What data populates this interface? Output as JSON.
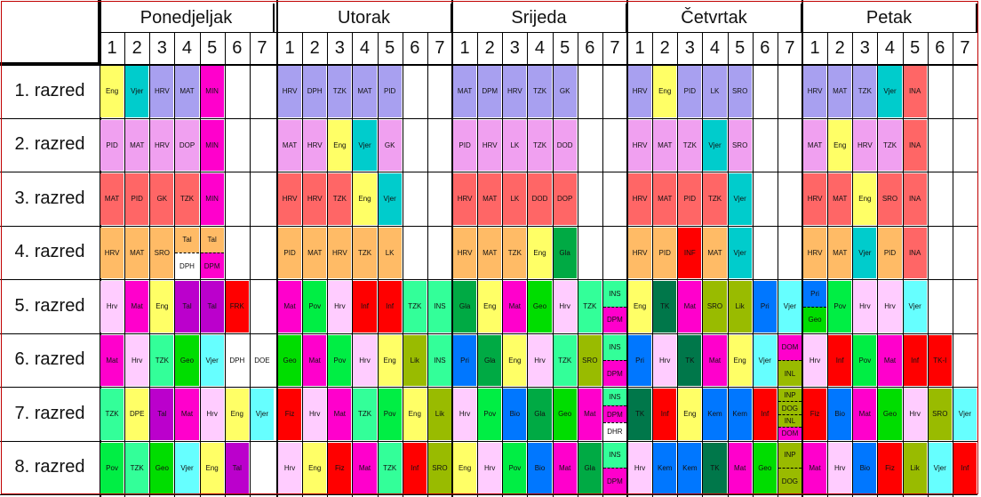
{
  "days": [
    "Ponedjeljak",
    "Utorak",
    "Srijeda",
    "Četvrtak",
    "Petak"
  ],
  "periods": [
    "1",
    "2",
    "3",
    "4",
    "5",
    "6",
    "7"
  ],
  "classes": [
    "1. razred",
    "2. razred",
    "3. razred",
    "4. razred",
    "5. razred",
    "6. razred",
    "7. razred",
    "8. razred"
  ],
  "colors": {
    "HRV": "#a8a0f0",
    "MAT": "#f0a0f0",
    "PID": "#f0a0f0",
    "TZK": "#a8a0f0",
    "Eng": "#ffff66",
    "Vjer": "#66ffff",
    "MIN": "#ff00cc",
    "DPH": "#ffcc66",
    "DPM": "#ff00cc",
    "GK": "#a8a0f0",
    "LK": "#a8a0f0",
    "SRO": "#a8a0f0",
    "DOP": "#f0a0f0",
    "DOD": "#f0a0f0",
    "INA": "#ff6666",
    "INF": "#ff0000",
    "Gla": "#00aa44",
    "red": "#ff6666",
    "orange": "#ffbb66"
  },
  "rows": [
    {
      "Ponedjeljak": [
        "Eng",
        "Vjer",
        "HRV",
        "MAT",
        "MIN",
        "",
        ""
      ],
      "Utorak": [
        "HRV",
        "DPH",
        "TZK",
        "MAT",
        "PID",
        "",
        ""
      ],
      "Srijeda": [
        "MAT",
        "DPM",
        "HRV",
        "TZK",
        "GK",
        "",
        ""
      ],
      "Četvrtak": [
        "HRV",
        "Eng",
        "PID",
        "LK",
        "SRO",
        "",
        ""
      ],
      "Petak": [
        "HRV",
        "MAT",
        "TZK",
        "Vjer",
        "INA",
        "",
        ""
      ]
    },
    {
      "Ponedjeljak": [
        "PID",
        "MAT",
        "HRV",
        "DOP",
        "MIN",
        "",
        ""
      ],
      "Utorak": [
        "MAT",
        "HRV",
        "Eng",
        "Vjer",
        "GK",
        "",
        ""
      ],
      "Srijeda": [
        "PID",
        "HRV",
        "LK",
        "TZK",
        "DOD",
        "",
        ""
      ],
      "Četvrtak": [
        "HRV",
        "MAT",
        "TZK",
        "Vjer",
        "SRO",
        "",
        ""
      ],
      "Petak": [
        "MAT",
        "Eng",
        "HRV",
        "TZK",
        "INA",
        "",
        ""
      ]
    },
    {
      "Ponedjeljak": [
        "MAT",
        "PID",
        "GK",
        "TZK",
        "MIN",
        "",
        ""
      ],
      "Utorak": [
        "HRV",
        "HRV",
        "TZK",
        "Eng",
        "Vjer",
        "",
        ""
      ],
      "Srijeda": [
        "HRV",
        "MAT",
        "LK",
        "DOD",
        "DOP",
        "",
        ""
      ],
      "Četvrtak": [
        "HRV",
        "MAT",
        "PID",
        "TZK",
        "Vjer",
        "",
        ""
      ],
      "Petak": [
        "HRV",
        "MAT",
        "Eng",
        "SRO",
        "INA",
        "",
        ""
      ]
    },
    {
      "Ponedjeljak": [
        "HRV",
        "MAT",
        "SRO",
        "Tal / DPH",
        "Tal / DPM",
        "",
        ""
      ],
      "Utorak": [
        "PID",
        "MAT",
        "HRV",
        "TZK",
        "LK",
        "",
        ""
      ],
      "Srijeda": [
        "HRV",
        "MAT",
        "TZK",
        "Eng",
        "Gla",
        "",
        ""
      ],
      "Četvrtak": [
        "HRV",
        "PID",
        "INF",
        "MAT",
        "Vjer",
        "",
        ""
      ],
      "Petak": [
        "HRV",
        "MAT",
        "Vjer",
        "PID",
        "INA",
        "",
        ""
      ]
    },
    {
      "Ponedjeljak": [
        "Hrv",
        "Mat",
        "Eng",
        "Tal",
        "Tal",
        "FRK",
        ""
      ],
      "Utorak": [
        "Mat",
        "Pov",
        "Hrv",
        "Inf",
        "Inf",
        "TZK",
        "INS"
      ],
      "Srijeda": [
        "Gla",
        "Eng",
        "Mat",
        "Geo",
        "Hrv",
        "TZK",
        "INS / DPM"
      ],
      "Četvrtak": [
        "Eng",
        "TK",
        "Mat",
        "SRO",
        "Lik",
        "Pri",
        "Vjer"
      ],
      "Petak": [
        "Pri / Geo",
        "Pov",
        "Hrv",
        "Hrv",
        "Vjer",
        "",
        ""
      ]
    },
    {
      "Ponedjeljak": [
        "Mat",
        "Hrv",
        "TZK",
        "Geo",
        "Vjer",
        "DPH",
        "DOE"
      ],
      "Utorak": [
        "Geo",
        "Mat",
        "Pov",
        "Hrv",
        "Eng",
        "Lik",
        "INS"
      ],
      "Srijeda": [
        "Pri",
        "Gla",
        "Eng",
        "Hrv",
        "TZK",
        "SRO",
        "INS / DPM"
      ],
      "Četvrtak": [
        "Pri",
        "Hrv",
        "TK",
        "Mat",
        "Eng",
        "Vjer",
        "DOM / INL"
      ],
      "Petak": [
        "Hrv",
        "Inf",
        "Pov",
        "Mat",
        "Inf",
        "TK-I",
        ""
      ]
    },
    {
      "Ponedjeljak": [
        "TZK",
        "DPE",
        "Tal",
        "Mat",
        "Hrv",
        "Eng",
        "Vjer"
      ],
      "Utorak": [
        "Fiz",
        "Hrv",
        "Mat",
        "TZK",
        "Pov",
        "Eng",
        "Lik"
      ],
      "Srijeda": [
        "Hrv",
        "Pov",
        "Bio",
        "Gla",
        "Geo",
        "Mat",
        "INS / DPM / DHR"
      ],
      "Četvrtak": [
        "TK",
        "Inf",
        "Eng",
        "Kem",
        "Kem",
        "Inf",
        "INP / DOG / INL / DOM"
      ],
      "Petak": [
        "Fiz",
        "Bio",
        "Mat",
        "Geo",
        "Hrv",
        "SRO",
        "Vjer"
      ]
    },
    {
      "Ponedjeljak": [
        "Pov",
        "TZK",
        "Geo",
        "Vjer",
        "Eng",
        "Tal",
        ""
      ],
      "Utorak": [
        "Hrv",
        "Eng",
        "Fiz",
        "Mat",
        "TZK",
        "Inf",
        "SRO"
      ],
      "Srijeda": [
        "Eng",
        "Hrv",
        "Pov",
        "Bio",
        "Mat",
        "Gla",
        "INS / DPM"
      ],
      "Četvrtak": [
        "Hrv",
        "Kem",
        "Kem",
        "TK",
        "Mat",
        "Geo",
        "INP / DOG"
      ],
      "Petak": [
        "Mat",
        "Hrv",
        "Bio",
        "Fiz",
        "Lik",
        "Vjer",
        "Inf"
      ]
    }
  ]
}
